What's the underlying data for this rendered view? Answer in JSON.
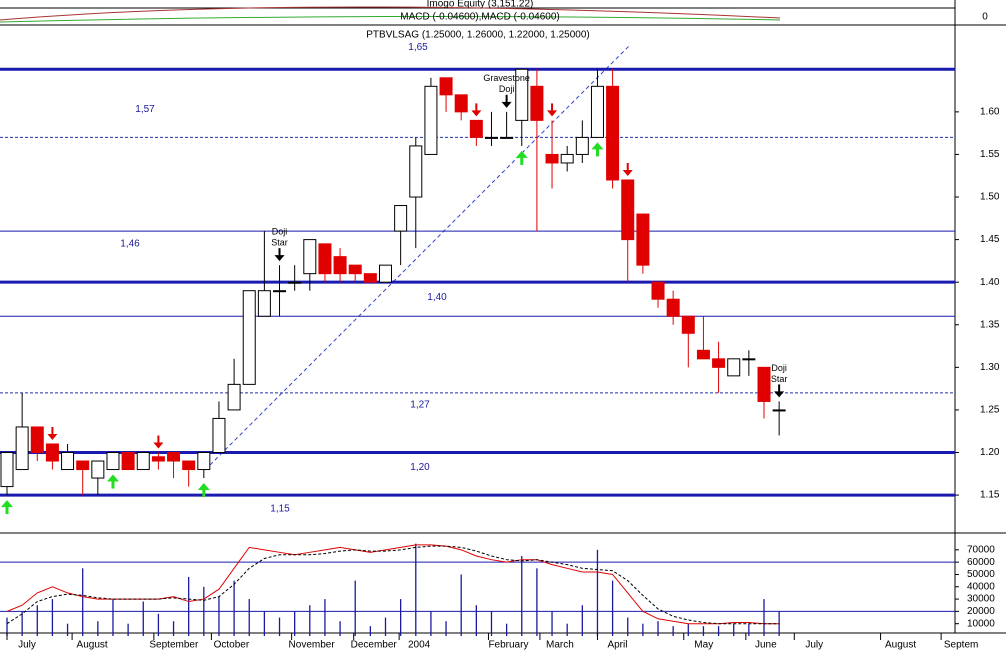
{
  "chart_data": {
    "type": "candlestick",
    "title": "PTBVLSAG (1.25000, 1.26000, 1.22000, 1.25000)",
    "indicator_titles": [
      "Imogo Equity (3,151.22)",
      "MACD (-0.04600),MACD (-0.04600)"
    ],
    "indicator_ticks": [
      0
    ],
    "up_color": "#ffffff",
    "down_color": "#e00000",
    "open": [
      1.16,
      1.18,
      1.23,
      1.21,
      1.18,
      1.19,
      1.17,
      1.18,
      1.2,
      1.18,
      1.195,
      1.2,
      1.19,
      1.18,
      1.2,
      1.25,
      1.28,
      1.36,
      1.39,
      1.4,
      1.41,
      1.445,
      1.43,
      1.42,
      1.41,
      1.4,
      1.46,
      1.5,
      1.55,
      1.64,
      1.62,
      1.59,
      1.57,
      1.57,
      1.59,
      1.63,
      1.55,
      1.54,
      1.55,
      1.57,
      1.63,
      1.52,
      1.48,
      1.4,
      1.38,
      1.36,
      1.32,
      1.31,
      1.29,
      1.31,
      1.3,
      1.25
    ],
    "high": [
      1.2,
      1.27,
      1.23,
      1.21,
      1.21,
      1.19,
      1.19,
      1.2,
      1.2,
      1.2,
      1.2,
      1.2,
      1.19,
      1.2,
      1.26,
      1.31,
      1.39,
      1.46,
      1.42,
      1.42,
      1.45,
      1.445,
      1.44,
      1.42,
      1.41,
      1.42,
      1.49,
      1.57,
      1.64,
      1.64,
      1.62,
      1.59,
      1.6,
      1.6,
      1.65,
      1.65,
      1.59,
      1.56,
      1.59,
      1.65,
      1.65,
      1.52,
      1.48,
      1.4,
      1.39,
      1.36,
      1.36,
      1.33,
      1.31,
      1.32,
      1.3,
      1.26
    ],
    "low": [
      1.15,
      1.18,
      1.19,
      1.18,
      1.18,
      1.15,
      1.15,
      1.18,
      1.18,
      1.18,
      1.18,
      1.17,
      1.16,
      1.17,
      1.2,
      1.25,
      1.28,
      1.36,
      1.36,
      1.39,
      1.39,
      1.4,
      1.4,
      1.4,
      1.4,
      1.4,
      1.42,
      1.44,
      1.55,
      1.6,
      1.59,
      1.56,
      1.56,
      1.57,
      1.56,
      1.46,
      1.51,
      1.53,
      1.54,
      1.57,
      1.51,
      1.4,
      1.41,
      1.37,
      1.35,
      1.3,
      1.31,
      1.27,
      1.29,
      1.29,
      1.24,
      1.22
    ],
    "close": [
      1.2,
      1.23,
      1.2,
      1.19,
      1.2,
      1.18,
      1.19,
      1.2,
      1.18,
      1.2,
      1.19,
      1.19,
      1.18,
      1.2,
      1.24,
      1.28,
      1.39,
      1.39,
      1.39,
      1.4,
      1.45,
      1.41,
      1.41,
      1.41,
      1.4,
      1.42,
      1.49,
      1.56,
      1.63,
      1.62,
      1.6,
      1.57,
      1.57,
      1.57,
      1.65,
      1.59,
      1.54,
      1.55,
      1.57,
      1.63,
      1.52,
      1.45,
      1.42,
      1.38,
      1.36,
      1.34,
      1.31,
      1.3,
      1.31,
      1.31,
      1.26,
      1.25
    ],
    "ylim": [
      1.109,
      1.702
    ],
    "yticks": [
      {
        "value": 1.15,
        "label": "1.15"
      },
      {
        "value": 1.2,
        "label": "1.20"
      },
      {
        "value": 1.25,
        "label": "1.25"
      },
      {
        "value": 1.3,
        "label": "1.30"
      },
      {
        "value": 1.35,
        "label": "1.35"
      },
      {
        "value": 1.4,
        "label": "1.40"
      },
      {
        "value": 1.45,
        "label": "1.45"
      },
      {
        "value": 1.5,
        "label": "1.50"
      },
      {
        "value": 1.55,
        "label": "1.55"
      },
      {
        "value": 1.6,
        "label": "1.60"
      }
    ],
    "levels": [
      {
        "value": 1.65,
        "label": "1,65",
        "style": "thick"
      },
      {
        "value": 1.57,
        "label": "1,57",
        "style": "dashed"
      },
      {
        "value": 1.46,
        "label": "1,46",
        "style": "thin"
      },
      {
        "value": 1.4,
        "label": "1,40",
        "style": "thick"
      },
      {
        "value": 1.36,
        "style": "thin"
      },
      {
        "value": 1.27,
        "label": "1,27",
        "style": "dashed"
      },
      {
        "value": 1.2,
        "label": "1,20",
        "style": "thick"
      },
      {
        "value": 1.15,
        "label": "1,15",
        "style": "thick"
      }
    ],
    "arrows": [
      {
        "candle": 3,
        "dir": "down",
        "color": "#e00000"
      },
      {
        "candle": 10,
        "dir": "down",
        "color": "#e00000"
      },
      {
        "candle": 31,
        "dir": "down",
        "color": "#e00000"
      },
      {
        "candle": 36,
        "dir": "down",
        "color": "#e00000"
      },
      {
        "candle": 41,
        "dir": "down",
        "color": "#e00000"
      },
      {
        "candle": 0,
        "dir": "up",
        "color": "#22dd22"
      },
      {
        "candle": 7,
        "dir": "up",
        "color": "#22dd22"
      },
      {
        "candle": 13,
        "dir": "up",
        "color": "#22dd22"
      },
      {
        "candle": 34,
        "dir": "up",
        "color": "#22dd22"
      },
      {
        "candle": 39,
        "dir": "up",
        "color": "#22dd22"
      },
      {
        "candle": 18,
        "dir": "down",
        "color": "#000000"
      },
      {
        "candle": 33,
        "dir": "down",
        "color": "#000000"
      },
      {
        "candle": 51,
        "dir": "down",
        "color": "#000000"
      }
    ],
    "annotations": [
      {
        "candle": 18,
        "lines": [
          "Doji",
          "Star"
        ]
      },
      {
        "candle": 33,
        "lines": [
          "Gravestone",
          "Doji"
        ]
      },
      {
        "candle": 51,
        "lines": [
          "Doji",
          "Star"
        ]
      }
    ],
    "volume": {
      "color": "#1a1aa0",
      "values": [
        15000,
        20000,
        25000,
        30000,
        10000,
        55000,
        12000,
        30000,
        10000,
        28000,
        18000,
        12000,
        48000,
        40000,
        32000,
        45000,
        30000,
        20000,
        15000,
        20000,
        25000,
        30000,
        12000,
        45000,
        8000,
        15000,
        30000,
        75000,
        20000,
        12000,
        50000,
        25000,
        20000,
        10000,
        65000,
        55000,
        20000,
        10000,
        25000,
        70000,
        45000,
        15000,
        10000,
        12000,
        8000,
        10000,
        8000,
        8000,
        10000,
        10000,
        30000,
        20000
      ],
      "lines": [
        {
          "color": "#e00000",
          "dash": false,
          "values": [
            20000,
            25000,
            35000,
            40000,
            35000,
            32000,
            30000,
            30000,
            30000,
            30000,
            30000,
            32000,
            28000,
            30000,
            38000,
            55000,
            72000,
            70000,
            68000,
            66000,
            68000,
            70000,
            72000,
            70000,
            68000,
            70000,
            72000,
            74000,
            74000,
            73000,
            70000,
            65000,
            62000,
            60000,
            62000,
            62000,
            58000,
            55000,
            52000,
            52000,
            50000,
            35000,
            20000,
            14000,
            12000,
            10000,
            10000,
            10000,
            11000,
            11000,
            10000,
            10000
          ]
        },
        {
          "color": "#000000",
          "dash": true,
          "values": [
            10000,
            18000,
            28000,
            32000,
            34000,
            33000,
            31000,
            30000,
            30000,
            30000,
            30000,
            31000,
            30000,
            29000,
            32000,
            42000,
            55000,
            63000,
            66000,
            66000,
            66000,
            67000,
            69000,
            70000,
            69000,
            69000,
            70000,
            72000,
            73000,
            73000,
            72000,
            69000,
            65000,
            62000,
            61000,
            62000,
            60000,
            58000,
            55000,
            54000,
            53000,
            45000,
            33000,
            22000,
            16000,
            13000,
            11000,
            10000,
            10000,
            10000,
            10000,
            10000
          ]
        }
      ],
      "ylim": [
        0,
        78000
      ],
      "yticks": [
        10000,
        20000,
        30000,
        40000,
        50000,
        60000,
        70000
      ],
      "levels": [
        20000,
        60000
      ]
    },
    "x_labels": [
      {
        "label": "July",
        "index": 0
      },
      {
        "label": "August",
        "index": 4.3
      },
      {
        "label": "September",
        "index": 9.7
      },
      {
        "label": "October",
        "index": 13.5
      },
      {
        "label": "November",
        "index": 18.8
      },
      {
        "label": "December",
        "index": 22.9
      },
      {
        "label": "2004",
        "index": 25.9
      },
      {
        "label": "February",
        "index": 31.8
      },
      {
        "label": "March",
        "index": 35.2
      },
      {
        "label": "April",
        "index": 39
      },
      {
        "label": "May",
        "index": 44.7
      },
      {
        "label": "June",
        "index": 48.8
      },
      {
        "label": "July",
        "index": 52
      },
      {
        "label": "August",
        "index": 57.7
      },
      {
        "label": "Septem",
        "index": 61.7
      }
    ]
  }
}
